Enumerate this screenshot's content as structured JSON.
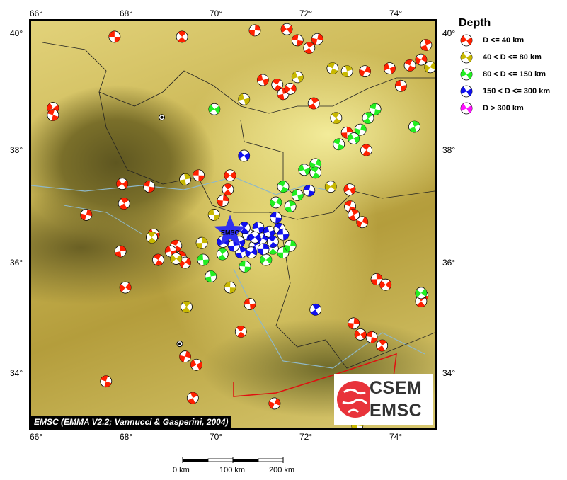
{
  "axes": {
    "lon_ticks": [
      "66°",
      "68°",
      "70°",
      "72°",
      "74°"
    ],
    "lat_ticks": [
      "40°",
      "38°",
      "36°",
      "34°"
    ],
    "lon_values": [
      66,
      68,
      70,
      72,
      74
    ],
    "lat_values": [
      40,
      38,
      36,
      34
    ]
  },
  "legend": {
    "title": "Depth",
    "items": [
      {
        "label": "D <= 40 km",
        "color": "#ff2000"
      },
      {
        "label": "40 < D <= 80 km",
        "color": "#c8b800"
      },
      {
        "label": "80 < D <= 150 km",
        "color": "#22ee22"
      },
      {
        "label": "150 < D <= 300 km",
        "color": "#1010ee"
      },
      {
        "label": "D > 300 km",
        "color": "#ff10ff"
      }
    ]
  },
  "attribution": "EMSC (EMMA V2.2; Vannucci & Gasperini, 2004)",
  "epicenter": {
    "label": "EMSC",
    "lon": 70.3,
    "lat": 36.55,
    "color": "#3030ee"
  },
  "scale": {
    "labels": [
      "0 km",
      "100 km",
      "200 km"
    ]
  },
  "logo": {
    "line1": "CSEM",
    "line2": "EMSC"
  },
  "cities": [
    {
      "lon": 68.78,
      "lat": 38.56
    },
    {
      "lon": 69.18,
      "lat": 34.53
    }
  ],
  "events": [
    [
      67.73,
      39.94,
      0
    ],
    [
      69.23,
      39.94,
      0
    ],
    [
      70.85,
      40.05,
      0
    ],
    [
      71.56,
      40.07,
      0
    ],
    [
      71.8,
      39.88,
      0
    ],
    [
      72.06,
      39.75,
      0
    ],
    [
      72.24,
      39.9,
      0
    ],
    [
      66.36,
      38.72,
      0
    ],
    [
      66.36,
      38.6,
      0
    ],
    [
      72.16,
      38.8,
      0
    ],
    [
      73.3,
      39.35,
      0
    ],
    [
      73.85,
      39.4,
      0
    ],
    [
      74.3,
      39.45,
      0
    ],
    [
      74.66,
      39.8,
      0
    ],
    [
      74.55,
      39.55,
      0
    ],
    [
      71.03,
      39.2,
      0
    ],
    [
      71.35,
      39.12,
      0
    ],
    [
      71.48,
      38.96,
      0
    ],
    [
      71.64,
      39.05,
      0
    ],
    [
      74.1,
      39.1,
      0
    ],
    [
      73.33,
      38.0,
      0
    ],
    [
      72.9,
      38.3,
      0
    ],
    [
      70.3,
      37.55,
      0
    ],
    [
      69.6,
      37.55,
      0
    ],
    [
      70.25,
      37.3,
      0
    ],
    [
      70.14,
      37.1,
      0
    ],
    [
      67.9,
      37.4,
      0
    ],
    [
      68.5,
      37.35,
      0
    ],
    [
      67.94,
      37.05,
      0
    ],
    [
      67.1,
      36.85,
      0
    ],
    [
      72.96,
      37.3,
      0
    ],
    [
      72.97,
      37.0,
      0
    ],
    [
      73.05,
      36.85,
      0
    ],
    [
      73.24,
      36.72,
      0
    ],
    [
      68.6,
      36.5,
      0
    ],
    [
      69.1,
      36.3,
      0
    ],
    [
      69.2,
      36.1,
      0
    ],
    [
      69.3,
      36.0,
      0
    ],
    [
      68.98,
      36.2,
      0
    ],
    [
      68.7,
      36.05,
      0
    ],
    [
      67.86,
      36.2,
      0
    ],
    [
      67.97,
      35.55,
      0
    ],
    [
      70.74,
      35.25,
      0
    ],
    [
      70.54,
      34.75,
      0
    ],
    [
      73.56,
      35.7,
      0
    ],
    [
      73.76,
      35.6,
      0
    ],
    [
      74.58,
      35.4,
      0
    ],
    [
      74.55,
      35.3,
      0
    ],
    [
      73.05,
      34.9,
      0
    ],
    [
      73.2,
      34.7,
      0
    ],
    [
      73.45,
      34.65,
      0
    ],
    [
      73.68,
      34.5,
      0
    ],
    [
      69.3,
      34.3,
      0
    ],
    [
      69.55,
      34.15,
      0
    ],
    [
      67.54,
      33.85,
      0
    ],
    [
      69.47,
      33.55,
      0
    ],
    [
      71.29,
      33.45,
      0
    ],
    [
      71.8,
      39.25,
      1
    ],
    [
      72.58,
      39.4,
      1
    ],
    [
      72.9,
      39.35,
      1
    ],
    [
      74.75,
      39.42,
      1
    ],
    [
      70.61,
      38.87,
      1
    ],
    [
      72.66,
      38.55,
      1
    ],
    [
      69.3,
      37.48,
      1
    ],
    [
      72.54,
      37.35,
      1
    ],
    [
      69.94,
      36.85,
      1
    ],
    [
      68.56,
      36.45,
      1
    ],
    [
      69.67,
      36.35,
      1
    ],
    [
      69.1,
      36.07,
      1
    ],
    [
      70.3,
      35.55,
      1
    ],
    [
      69.33,
      35.2,
      1
    ],
    [
      73.13,
      33.05,
      1
    ],
    [
      69.95,
      38.7,
      2
    ],
    [
      73.53,
      38.7,
      2
    ],
    [
      73.37,
      38.55,
      2
    ],
    [
      73.2,
      38.35,
      2
    ],
    [
      73.05,
      38.2,
      2
    ],
    [
      72.72,
      38.1,
      2
    ],
    [
      74.4,
      38.4,
      2
    ],
    [
      72.2,
      37.75,
      2
    ],
    [
      71.95,
      37.65,
      2
    ],
    [
      71.48,
      37.35,
      2
    ],
    [
      71.64,
      37.0,
      2
    ],
    [
      71.32,
      37.07,
      2
    ],
    [
      71.8,
      37.2,
      2
    ],
    [
      72.2,
      37.6,
      2
    ],
    [
      69.87,
      35.75,
      2
    ],
    [
      74.55,
      35.45,
      2
    ],
    [
      69.7,
      36.05,
      2
    ],
    [
      71.25,
      36.25,
      2
    ],
    [
      71.48,
      36.18,
      2
    ],
    [
      71.1,
      36.05,
      2
    ],
    [
      70.63,
      35.93,
      2
    ],
    [
      70.13,
      36.15,
      2
    ],
    [
      71.64,
      36.3,
      2
    ],
    [
      70.61,
      37.9,
      3
    ],
    [
      72.06,
      37.28,
      3
    ],
    [
      72.2,
      35.15,
      3
    ],
    [
      70.3,
      36.55,
      3
    ],
    [
      70.5,
      36.37,
      3
    ],
    [
      70.7,
      36.5,
      3
    ],
    [
      70.85,
      36.3,
      3
    ],
    [
      71.01,
      36.43,
      3
    ],
    [
      71.17,
      36.55,
      3
    ],
    [
      71.4,
      36.6,
      3
    ],
    [
      70.54,
      36.18,
      3
    ],
    [
      70.77,
      36.18,
      3
    ],
    [
      70.93,
      36.62,
      3
    ],
    [
      71.25,
      36.37,
      3
    ],
    [
      70.38,
      36.3,
      3
    ],
    [
      70.14,
      36.37,
      3
    ],
    [
      71.48,
      36.5,
      3
    ],
    [
      70.62,
      36.62,
      3
    ],
    [
      71.04,
      36.24,
      3
    ],
    [
      70.85,
      36.45,
      3
    ],
    [
      71.32,
      36.8,
      3
    ]
  ]
}
